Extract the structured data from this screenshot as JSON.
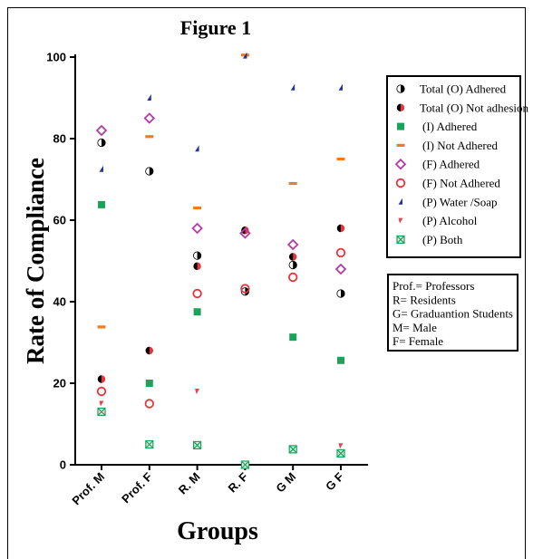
{
  "chart_data": {
    "type": "scatter",
    "title": "Figure 1",
    "xlabel": "Groups",
    "ylabel": "Rate of Compliance",
    "categories": [
      "Prof. M",
      "Prof. F",
      "R. M",
      "R. F",
      "G M",
      "G F"
    ],
    "ylim": [
      0,
      100
    ],
    "yticks": [
      "0",
      "20",
      "40",
      "60",
      "80",
      "100"
    ],
    "grid": false,
    "legend_position": "right",
    "series": [
      {
        "name": "Total (O) Adhered",
        "marker": "half-circle-left",
        "color": "#000000",
        "values": [
          79,
          72,
          51.3,
          42.5,
          49,
          42
        ]
      },
      {
        "name": "Total (O) Not adhesion",
        "marker": "half-circle-right-red",
        "color": "#000000",
        "values": [
          21,
          28,
          48.7,
          57.5,
          51,
          58
        ]
      },
      {
        "name": "(I) Adhered",
        "marker": "square",
        "color": "#1aa35b",
        "values": [
          63.8,
          20,
          37.5,
          0,
          31.3,
          25.6
        ]
      },
      {
        "name": "(I) Not Adhered",
        "marker": "dash",
        "color": "#f07b22",
        "values": [
          33.8,
          80.5,
          63,
          100.5,
          69,
          75
        ]
      },
      {
        "name": "(F) Adhered",
        "marker": "diamond",
        "color": "#b43aa6",
        "values": [
          82,
          85,
          58,
          56.8,
          54,
          48
        ]
      },
      {
        "name": "(F) Not Adhered",
        "marker": "circle-open",
        "color": "#e8343a",
        "values": [
          18,
          15,
          42,
          43.2,
          46,
          52
        ]
      },
      {
        "name": "(P) Water /Soap",
        "marker": "triangle",
        "color": "#23339c",
        "values": [
          72.5,
          90,
          77.5,
          100.3,
          92.5,
          92.5
        ]
      },
      {
        "name": "(P) Alcohol",
        "marker": "tick",
        "color": "#e8434f",
        "values": [
          15,
          null,
          18,
          null,
          null,
          4.6
        ]
      },
      {
        "name": "(P) Both",
        "marker": "boxed-x",
        "color": "#1aa35b",
        "values": [
          13,
          5,
          4.8,
          0,
          3.8,
          2.8
        ]
      }
    ],
    "notes": [
      "Prof.= Professors",
      "R= Residents",
      "G= Graduantion Students",
      "M= Male",
      "F= Female"
    ]
  }
}
